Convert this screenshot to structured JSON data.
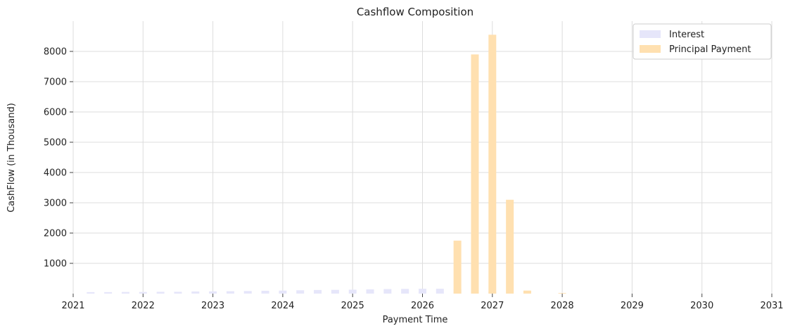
{
  "chart_data": {
    "type": "bar",
    "title": "Cashflow Composition",
    "xlabel": "Payment Time",
    "ylabel": "CashFlow (in Thousand)",
    "xlim": [
      2021,
      2031
    ],
    "ylim": [
      0,
      9000
    ],
    "xticks": [
      "2021",
      "2022",
      "2023",
      "2024",
      "2025",
      "2026",
      "2027",
      "2028",
      "2029",
      "2030",
      "2031"
    ],
    "yticks": [
      1000,
      2000,
      3000,
      4000,
      5000,
      6000,
      7000,
      8000
    ],
    "grid": true,
    "legend_position": "top-right",
    "series": [
      {
        "name": "Interest",
        "color": "#e6e6fa",
        "points": [
          {
            "x": "2021-04",
            "y": 50
          },
          {
            "x": "2021-07",
            "y": 50
          },
          {
            "x": "2021-10",
            "y": 55
          },
          {
            "x": "2022-01",
            "y": 55
          },
          {
            "x": "2022-04",
            "y": 60
          },
          {
            "x": "2022-07",
            "y": 60
          },
          {
            "x": "2022-10",
            "y": 70
          },
          {
            "x": "2023-01",
            "y": 75
          },
          {
            "x": "2023-04",
            "y": 80
          },
          {
            "x": "2023-07",
            "y": 85
          },
          {
            "x": "2023-10",
            "y": 95
          },
          {
            "x": "2024-01",
            "y": 100
          },
          {
            "x": "2024-04",
            "y": 110
          },
          {
            "x": "2024-07",
            "y": 120
          },
          {
            "x": "2024-10",
            "y": 125
          },
          {
            "x": "2025-01",
            "y": 130
          },
          {
            "x": "2025-04",
            "y": 140
          },
          {
            "x": "2025-07",
            "y": 150
          },
          {
            "x": "2025-10",
            "y": 155
          },
          {
            "x": "2026-01",
            "y": 160
          },
          {
            "x": "2026-04",
            "y": 160
          },
          {
            "x": "2026-07",
            "y": 150
          },
          {
            "x": "2026-10",
            "y": 120
          },
          {
            "x": "2027-01",
            "y": 60
          }
        ]
      },
      {
        "name": "Principal Payment",
        "color": "#ffe0b0",
        "points": [
          {
            "x": "2026-07",
            "y": 1750
          },
          {
            "x": "2026-10",
            "y": 7900
          },
          {
            "x": "2027-01",
            "y": 8550
          },
          {
            "x": "2027-04",
            "y": 3100
          },
          {
            "x": "2027-07",
            "y": 100
          },
          {
            "x": "2028-01",
            "y": 20
          }
        ]
      }
    ]
  }
}
